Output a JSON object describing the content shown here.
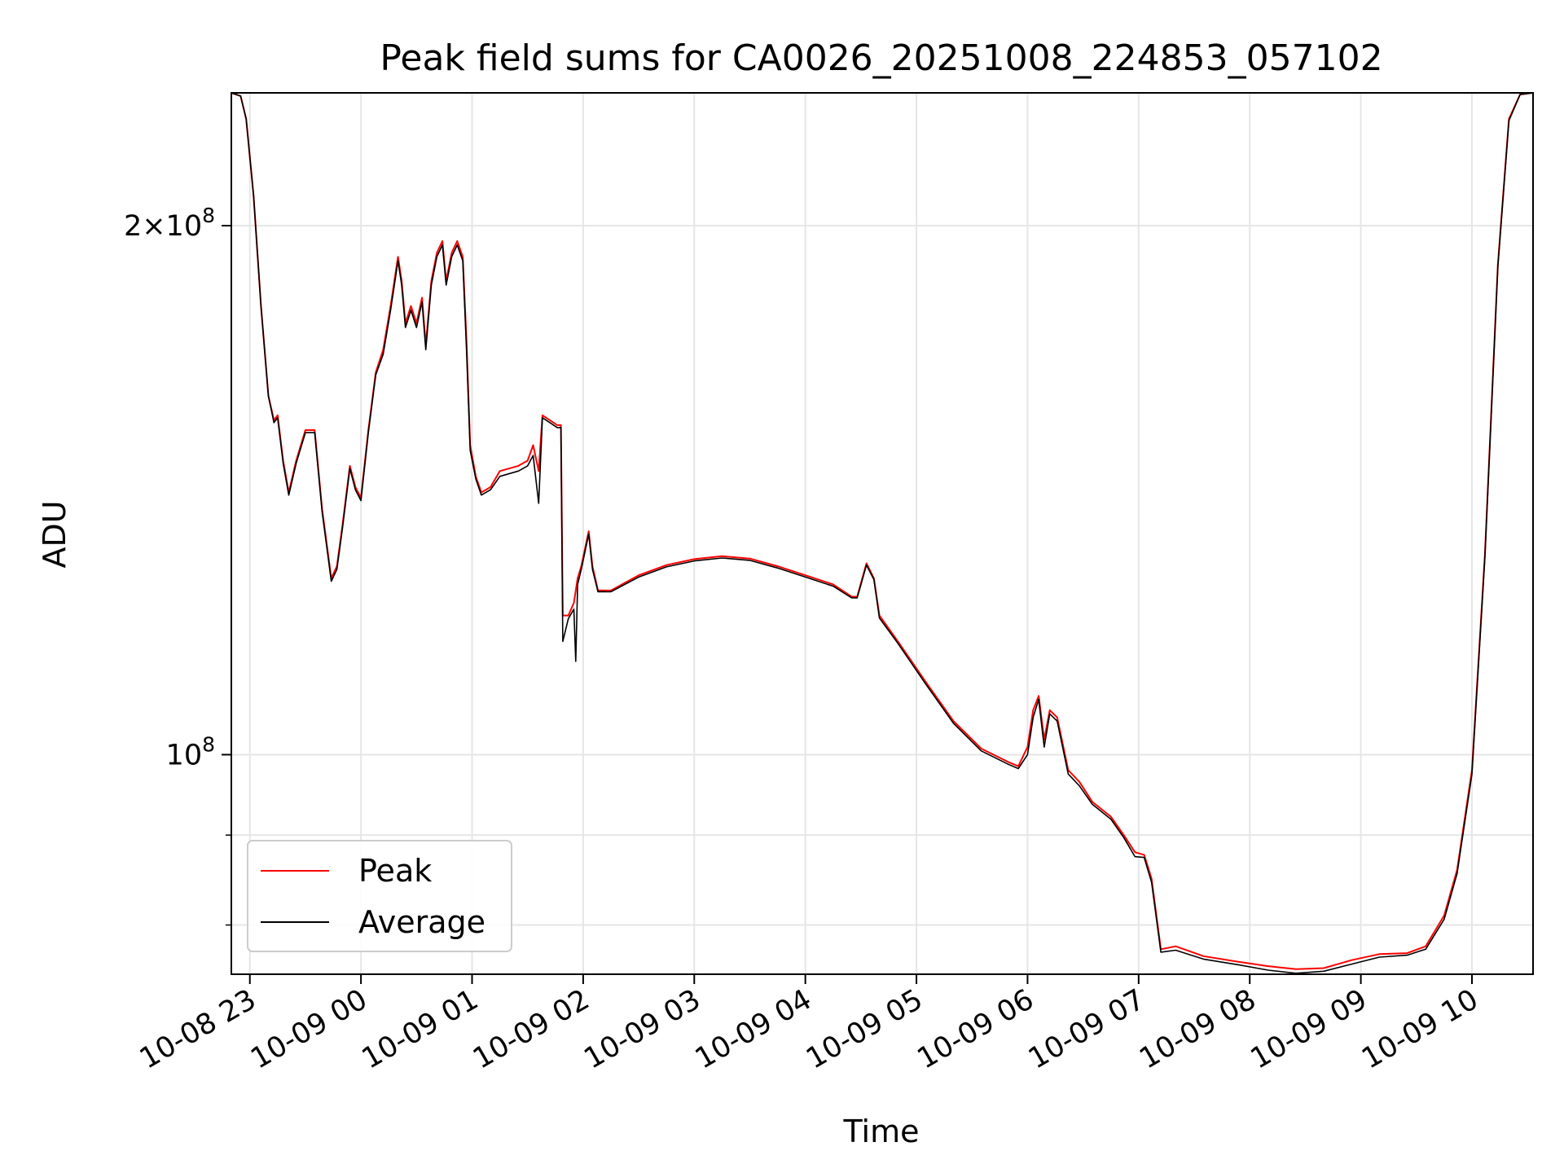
{
  "chart_data": {
    "type": "line",
    "title": "Peak field sums for CA0026_20251008_224853_057102",
    "xlabel": "Time",
    "ylabel": "ADU",
    "y_scale": "log",
    "ylim": [
      75000000,
      238000000
    ],
    "xlim": [
      "2025-10-08 22:50",
      "2025-10-09 10:33"
    ],
    "grid": true,
    "legend_position": "lower-left",
    "x_ticks": [
      {
        "t": "2025-10-08 23:00",
        "label": "10-08 23"
      },
      {
        "t": "2025-10-09 00:00",
        "label": "10-09 00"
      },
      {
        "t": "2025-10-09 01:00",
        "label": "10-09 01"
      },
      {
        "t": "2025-10-09 02:00",
        "label": "10-09 02"
      },
      {
        "t": "2025-10-09 03:00",
        "label": "10-09 03"
      },
      {
        "t": "2025-10-09 04:00",
        "label": "10-09 04"
      },
      {
        "t": "2025-10-09 05:00",
        "label": "10-09 05"
      },
      {
        "t": "2025-10-09 06:00",
        "label": "10-09 06"
      },
      {
        "t": "2025-10-09 07:00",
        "label": "10-09 07"
      },
      {
        "t": "2025-10-09 08:00",
        "label": "10-09 08"
      },
      {
        "t": "2025-10-09 09:00",
        "label": "10-09 09"
      },
      {
        "t": "2025-10-09 10:00",
        "label": "10-09 10"
      }
    ],
    "y_major_ticks": [
      {
        "value": 100000000,
        "base": "10",
        "exp": "8",
        "mult": ""
      },
      {
        "value": 200000000,
        "base": "10",
        "exp": "8",
        "mult": "2×"
      }
    ],
    "y_minor_ticks": [
      80000000,
      90000000
    ],
    "series": [
      {
        "name": "Peak",
        "color": "#ff0000",
        "points": [
          [
            "2025-10-08 22:50",
            238000000
          ],
          [
            "2025-10-08 22:55",
            237000000
          ],
          [
            "2025-10-08 22:58",
            230000000
          ],
          [
            "2025-10-08 23:02",
            208000000
          ],
          [
            "2025-10-08 23:06",
            180000000
          ],
          [
            "2025-10-08 23:10",
            160000000
          ],
          [
            "2025-10-08 23:13",
            155000000
          ],
          [
            "2025-10-08 23:15",
            156000000
          ],
          [
            "2025-10-08 23:18",
            147000000
          ],
          [
            "2025-10-08 23:21",
            141000000
          ],
          [
            "2025-10-08 23:25",
            147000000
          ],
          [
            "2025-10-08 23:30",
            153000000
          ],
          [
            "2025-10-08 23:35",
            153000000
          ],
          [
            "2025-10-08 23:39",
            138000000
          ],
          [
            "2025-10-08 23:44",
            126000000
          ],
          [
            "2025-10-08 23:47",
            128000000
          ],
          [
            "2025-10-08 23:50",
            135000000
          ],
          [
            "2025-10-08 23:54",
            146000000
          ],
          [
            "2025-10-08 23:57",
            142000000
          ],
          [
            "2025-10-09 00:00",
            140000000
          ],
          [
            "2025-10-09 00:04",
            153000000
          ],
          [
            "2025-10-09 00:08",
            165000000
          ],
          [
            "2025-10-09 00:12",
            170000000
          ],
          [
            "2025-10-09 00:16",
            180000000
          ],
          [
            "2025-10-09 00:20",
            192000000
          ],
          [
            "2025-10-09 00:22",
            186000000
          ],
          [
            "2025-10-09 00:24",
            176000000
          ],
          [
            "2025-10-09 00:27",
            180000000
          ],
          [
            "2025-10-09 00:30",
            176000000
          ],
          [
            "2025-10-09 00:33",
            182000000
          ],
          [
            "2025-10-09 00:35",
            171000000
          ],
          [
            "2025-10-09 00:38",
            186000000
          ],
          [
            "2025-10-09 00:41",
            193000000
          ],
          [
            "2025-10-09 00:44",
            196000000
          ],
          [
            "2025-10-09 00:46",
            186000000
          ],
          [
            "2025-10-09 00:49",
            193000000
          ],
          [
            "2025-10-09 00:52",
            196000000
          ],
          [
            "2025-10-09 00:55",
            192000000
          ],
          [
            "2025-10-09 00:57",
            172000000
          ],
          [
            "2025-10-09 00:59",
            150000000
          ],
          [
            "2025-10-09 01:02",
            144000000
          ],
          [
            "2025-10-09 01:05",
            141000000
          ],
          [
            "2025-10-09 01:10",
            142000000
          ],
          [
            "2025-10-09 01:15",
            145000000
          ],
          [
            "2025-10-09 01:25",
            146000000
          ],
          [
            "2025-10-09 01:30",
            147000000
          ],
          [
            "2025-10-09 01:33",
            150000000
          ],
          [
            "2025-10-09 01:36",
            145000000
          ],
          [
            "2025-10-09 01:38",
            156000000
          ],
          [
            "2025-10-09 01:42",
            155000000
          ],
          [
            "2025-10-09 01:46",
            154000000
          ],
          [
            "2025-10-09 01:48",
            154000000
          ],
          [
            "2025-10-09 01:49",
            120000000
          ],
          [
            "2025-10-09 01:52",
            120000000
          ],
          [
            "2025-10-09 01:55",
            122000000
          ],
          [
            "2025-10-09 01:57",
            126000000
          ],
          [
            "2025-10-09 01:59",
            128000000
          ],
          [
            "2025-10-09 02:03",
            134000000
          ],
          [
            "2025-10-09 02:05",
            128000000
          ],
          [
            "2025-10-09 02:08",
            124000000
          ],
          [
            "2025-10-09 02:15",
            124000000
          ],
          [
            "2025-10-09 02:30",
            126500000
          ],
          [
            "2025-10-09 02:45",
            128200000
          ],
          [
            "2025-10-09 03:00",
            129200000
          ],
          [
            "2025-10-09 03:15",
            129700000
          ],
          [
            "2025-10-09 03:30",
            129300000
          ],
          [
            "2025-10-09 03:45",
            128000000
          ],
          [
            "2025-10-09 04:00",
            126500000
          ],
          [
            "2025-10-09 04:15",
            125000000
          ],
          [
            "2025-10-09 04:25",
            123000000
          ],
          [
            "2025-10-09 04:28",
            123000000
          ],
          [
            "2025-10-09 04:33",
            128500000
          ],
          [
            "2025-10-09 04:37",
            126000000
          ],
          [
            "2025-10-09 04:40",
            120000000
          ],
          [
            "2025-10-09 04:50",
            116000000
          ],
          [
            "2025-10-09 05:05",
            110000000
          ],
          [
            "2025-10-09 05:20",
            104500000
          ],
          [
            "2025-10-09 05:35",
            100800000
          ],
          [
            "2025-10-09 05:50",
            99000000
          ],
          [
            "2025-10-09 05:55",
            98500000
          ],
          [
            "2025-10-09 06:00",
            101000000
          ],
          [
            "2025-10-09 06:03",
            106000000
          ],
          [
            "2025-10-09 06:06",
            108000000
          ],
          [
            "2025-10-09 06:09",
            102000000
          ],
          [
            "2025-10-09 06:12",
            106000000
          ],
          [
            "2025-10-09 06:16",
            105000000
          ],
          [
            "2025-10-09 06:22",
            98000000
          ],
          [
            "2025-10-09 06:28",
            96500000
          ],
          [
            "2025-10-09 06:35",
            94000000
          ],
          [
            "2025-10-09 06:45",
            92200000
          ],
          [
            "2025-10-09 06:52",
            90000000
          ],
          [
            "2025-10-09 06:58",
            88000000
          ],
          [
            "2025-10-09 07:03",
            87700000
          ],
          [
            "2025-10-09 07:07",
            85000000
          ],
          [
            "2025-10-09 07:12",
            77500000
          ],
          [
            "2025-10-09 07:20",
            77800000
          ],
          [
            "2025-10-09 07:35",
            76800000
          ],
          [
            "2025-10-09 07:55",
            76200000
          ],
          [
            "2025-10-09 08:10",
            75800000
          ],
          [
            "2025-10-09 08:25",
            75500000
          ],
          [
            "2025-10-09 08:40",
            75600000
          ],
          [
            "2025-10-09 08:55",
            76400000
          ],
          [
            "2025-10-09 09:10",
            77000000
          ],
          [
            "2025-10-09 09:25",
            77100000
          ],
          [
            "2025-10-09 09:35",
            77800000
          ],
          [
            "2025-10-09 09:45",
            81000000
          ],
          [
            "2025-10-09 09:52",
            86000000
          ],
          [
            "2025-10-09 10:00",
            98000000
          ],
          [
            "2025-10-09 10:07",
            130000000
          ],
          [
            "2025-10-09 10:14",
            190000000
          ],
          [
            "2025-10-09 10:20",
            230000000
          ],
          [
            "2025-10-09 10:26",
            237500000
          ],
          [
            "2025-10-09 10:33",
            238000000
          ]
        ]
      },
      {
        "name": "Average",
        "color": "#000000",
        "points": [
          [
            "2025-10-08 22:50",
            238000000
          ],
          [
            "2025-10-08 22:55",
            237000000
          ],
          [
            "2025-10-08 22:58",
            230000000
          ],
          [
            "2025-10-08 23:02",
            208000000
          ],
          [
            "2025-10-08 23:06",
            180000000
          ],
          [
            "2025-10-08 23:10",
            160000000
          ],
          [
            "2025-10-08 23:13",
            154500000
          ],
          [
            "2025-10-08 23:15",
            155500000
          ],
          [
            "2025-10-08 23:18",
            146500000
          ],
          [
            "2025-10-08 23:21",
            140500000
          ],
          [
            "2025-10-08 23:25",
            146500000
          ],
          [
            "2025-10-08 23:30",
            152500000
          ],
          [
            "2025-10-08 23:35",
            152500000
          ],
          [
            "2025-10-08 23:39",
            137500000
          ],
          [
            "2025-10-08 23:44",
            125500000
          ],
          [
            "2025-10-08 23:47",
            127500000
          ],
          [
            "2025-10-08 23:50",
            134500000
          ],
          [
            "2025-10-08 23:54",
            145500000
          ],
          [
            "2025-10-08 23:57",
            141500000
          ],
          [
            "2025-10-09 00:00",
            139500000
          ],
          [
            "2025-10-09 00:04",
            152500000
          ],
          [
            "2025-10-09 00:08",
            164500000
          ],
          [
            "2025-10-09 00:12",
            169000000
          ],
          [
            "2025-10-09 00:16",
            179000000
          ],
          [
            "2025-10-09 00:20",
            191000000
          ],
          [
            "2025-10-09 00:22",
            185000000
          ],
          [
            "2025-10-09 00:24",
            175000000
          ],
          [
            "2025-10-09 00:27",
            179000000
          ],
          [
            "2025-10-09 00:30",
            175000000
          ],
          [
            "2025-10-09 00:33",
            181000000
          ],
          [
            "2025-10-09 00:35",
            170000000
          ],
          [
            "2025-10-09 00:38",
            185000000
          ],
          [
            "2025-10-09 00:41",
            192000000
          ],
          [
            "2025-10-09 00:44",
            195000000
          ],
          [
            "2025-10-09 00:46",
            185000000
          ],
          [
            "2025-10-09 00:49",
            192000000
          ],
          [
            "2025-10-09 00:52",
            195000000
          ],
          [
            "2025-10-09 00:55",
            191000000
          ],
          [
            "2025-10-09 00:57",
            170000000
          ],
          [
            "2025-10-09 00:59",
            149000000
          ],
          [
            "2025-10-09 01:02",
            143500000
          ],
          [
            "2025-10-09 01:05",
            140500000
          ],
          [
            "2025-10-09 01:10",
            141500000
          ],
          [
            "2025-10-09 01:15",
            144000000
          ],
          [
            "2025-10-09 01:25",
            145000000
          ],
          [
            "2025-10-09 01:30",
            146000000
          ],
          [
            "2025-10-09 01:33",
            148000000
          ],
          [
            "2025-10-09 01:36",
            139000000
          ],
          [
            "2025-10-09 01:38",
            155500000
          ],
          [
            "2025-10-09 01:42",
            154500000
          ],
          [
            "2025-10-09 01:46",
            153500000
          ],
          [
            "2025-10-09 01:48",
            153500000
          ],
          [
            "2025-10-09 01:49",
            116000000
          ],
          [
            "2025-10-09 01:52",
            119500000
          ],
          [
            "2025-10-09 01:55",
            121000000
          ],
          [
            "2025-10-09 01:56",
            113000000
          ],
          [
            "2025-10-09 01:57",
            125000000
          ],
          [
            "2025-10-09 01:59",
            127500000
          ],
          [
            "2025-10-09 02:03",
            133500000
          ],
          [
            "2025-10-09 02:05",
            127500000
          ],
          [
            "2025-10-09 02:08",
            123800000
          ],
          [
            "2025-10-09 02:15",
            123800000
          ],
          [
            "2025-10-09 02:30",
            126200000
          ],
          [
            "2025-10-09 02:45",
            127900000
          ],
          [
            "2025-10-09 03:00",
            128900000
          ],
          [
            "2025-10-09 03:15",
            129400000
          ],
          [
            "2025-10-09 03:30",
            129000000
          ],
          [
            "2025-10-09 03:45",
            127700000
          ],
          [
            "2025-10-09 04:00",
            126200000
          ],
          [
            "2025-10-09 04:15",
            124700000
          ],
          [
            "2025-10-09 04:25",
            122800000
          ],
          [
            "2025-10-09 04:28",
            122800000
          ],
          [
            "2025-10-09 04:33",
            128200000
          ],
          [
            "2025-10-09 04:37",
            125800000
          ],
          [
            "2025-10-09 04:40",
            119600000
          ],
          [
            "2025-10-09 04:50",
            115700000
          ],
          [
            "2025-10-09 05:05",
            109700000
          ],
          [
            "2025-10-09 05:20",
            104200000
          ],
          [
            "2025-10-09 05:35",
            100500000
          ],
          [
            "2025-10-09 05:50",
            98700000
          ],
          [
            "2025-10-09 05:55",
            98200000
          ],
          [
            "2025-10-09 06:00",
            100000000
          ],
          [
            "2025-10-09 06:03",
            105000000
          ],
          [
            "2025-10-09 06:06",
            107500000
          ],
          [
            "2025-10-09 06:09",
            101000000
          ],
          [
            "2025-10-09 06:12",
            105500000
          ],
          [
            "2025-10-09 06:16",
            104500000
          ],
          [
            "2025-10-09 06:22",
            97500000
          ],
          [
            "2025-10-09 06:28",
            96000000
          ],
          [
            "2025-10-09 06:35",
            93700000
          ],
          [
            "2025-10-09 06:45",
            91900000
          ],
          [
            "2025-10-09 06:52",
            89700000
          ],
          [
            "2025-10-09 06:58",
            87500000
          ],
          [
            "2025-10-09 07:03",
            87400000
          ],
          [
            "2025-10-09 07:07",
            84600000
          ],
          [
            "2025-10-09 07:12",
            77200000
          ],
          [
            "2025-10-09 07:20",
            77400000
          ],
          [
            "2025-10-09 07:35",
            76500000
          ],
          [
            "2025-10-09 07:55",
            75900000
          ],
          [
            "2025-10-09 08:10",
            75400000
          ],
          [
            "2025-10-09 08:25",
            75100000
          ],
          [
            "2025-10-09 08:40",
            75300000
          ],
          [
            "2025-10-09 08:55",
            76000000
          ],
          [
            "2025-10-09 09:10",
            76700000
          ],
          [
            "2025-10-09 09:25",
            76900000
          ],
          [
            "2025-10-09 09:35",
            77500000
          ],
          [
            "2025-10-09 09:45",
            80600000
          ],
          [
            "2025-10-09 09:52",
            85600000
          ],
          [
            "2025-10-09 10:00",
            97500000
          ],
          [
            "2025-10-09 10:07",
            129500000
          ],
          [
            "2025-10-09 10:14",
            189500000
          ],
          [
            "2025-10-09 10:20",
            229500000
          ],
          [
            "2025-10-09 10:26",
            237500000
          ],
          [
            "2025-10-09 10:33",
            238000000
          ]
        ]
      }
    ]
  }
}
